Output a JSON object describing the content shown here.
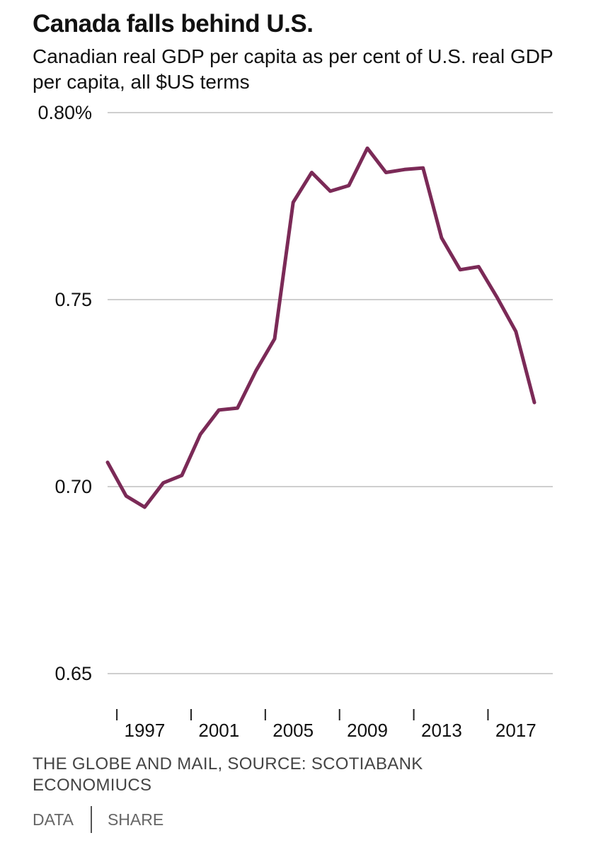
{
  "chart_data": {
    "type": "line",
    "title": "Canada falls behind U.S.",
    "subtitle": "Canadian real GDP per capita as per cent of U.S. real GDP per capita, all $US terms",
    "xlabel": "",
    "ylabel": "",
    "ylim": [
      0.65,
      0.8
    ],
    "yticks": [
      0.65,
      0.7,
      0.75,
      0.8
    ],
    "ytick_labels": [
      "0.65",
      "0.70",
      "0.75",
      "0.80%"
    ],
    "xticks": [
      1997,
      2001,
      2005,
      2009,
      2013,
      2017
    ],
    "xtick_labels": [
      "1997",
      "2001",
      "2005",
      "2009",
      "2013",
      "2017"
    ],
    "grid": true,
    "color": "#7b2a57",
    "series": [
      {
        "x": [
          1995,
          1996,
          1997,
          1998,
          1999,
          2000,
          2001,
          2002,
          2003,
          2004,
          2005,
          2006,
          2007,
          2008,
          2009,
          2010,
          2011,
          2012,
          2013,
          2014,
          2015,
          2016,
          2017,
          2018
        ],
        "values": [
          0.7065,
          0.6975,
          0.6945,
          0.701,
          0.703,
          0.714,
          0.7205,
          0.721,
          0.731,
          0.7395,
          0.776,
          0.784,
          0.779,
          0.7805,
          0.7905,
          0.784,
          0.7848,
          0.7852,
          0.7665,
          0.758,
          0.7588,
          0.7505,
          0.7415,
          0.7225
        ]
      }
    ]
  },
  "footer": {
    "source": "THE GLOBE AND MAIL, SOURCE: SCOTIABANK ECONOMIUCS",
    "data_link": "DATA",
    "share_link": "SHARE"
  }
}
